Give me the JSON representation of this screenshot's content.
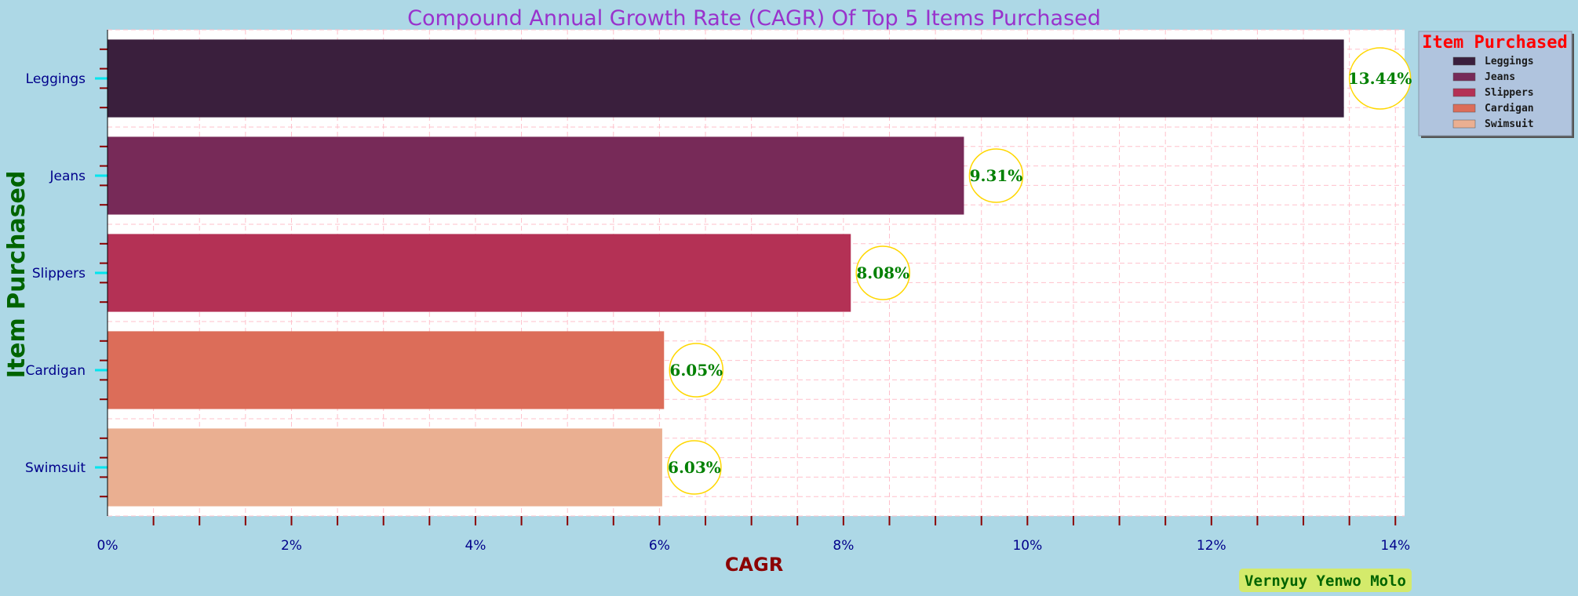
{
  "chart_data": {
    "type": "bar",
    "orientation": "horizontal",
    "title": "Compound Annual Growth Rate (CAGR) Of Top 5 Items Purchased",
    "xlabel": "CAGR",
    "ylabel": "Item Purchased",
    "categories": [
      "Leggings",
      "Jeans",
      "Slippers",
      "Cardigan",
      "Swimsuit"
    ],
    "values": [
      13.44,
      9.31,
      8.08,
      6.05,
      6.03
    ],
    "value_labels": [
      "13.44%",
      "9.31%",
      "8.08%",
      "6.05%",
      "6.03%"
    ],
    "colors": [
      "#3a1f3d",
      "#772a58",
      "#b43155",
      "#dc6d59",
      "#eaaf91"
    ],
    "xlim": [
      0,
      14.1
    ],
    "xticks": [
      0,
      2,
      4,
      6,
      8,
      10,
      12,
      14
    ],
    "xtick_labels": [
      "0%",
      "2%",
      "4%",
      "6%",
      "8%",
      "10%",
      "12%",
      "14%"
    ],
    "grid": true,
    "grid_color": "#ffc0cb",
    "legend": {
      "title": "Item Purchased",
      "placement": "outside-top-right",
      "entries": [
        "Leggings",
        "Jeans",
        "Slippers",
        "Cardigan",
        "Swimsuit"
      ]
    }
  },
  "credit": "Vernyuy Yenwo Molo"
}
